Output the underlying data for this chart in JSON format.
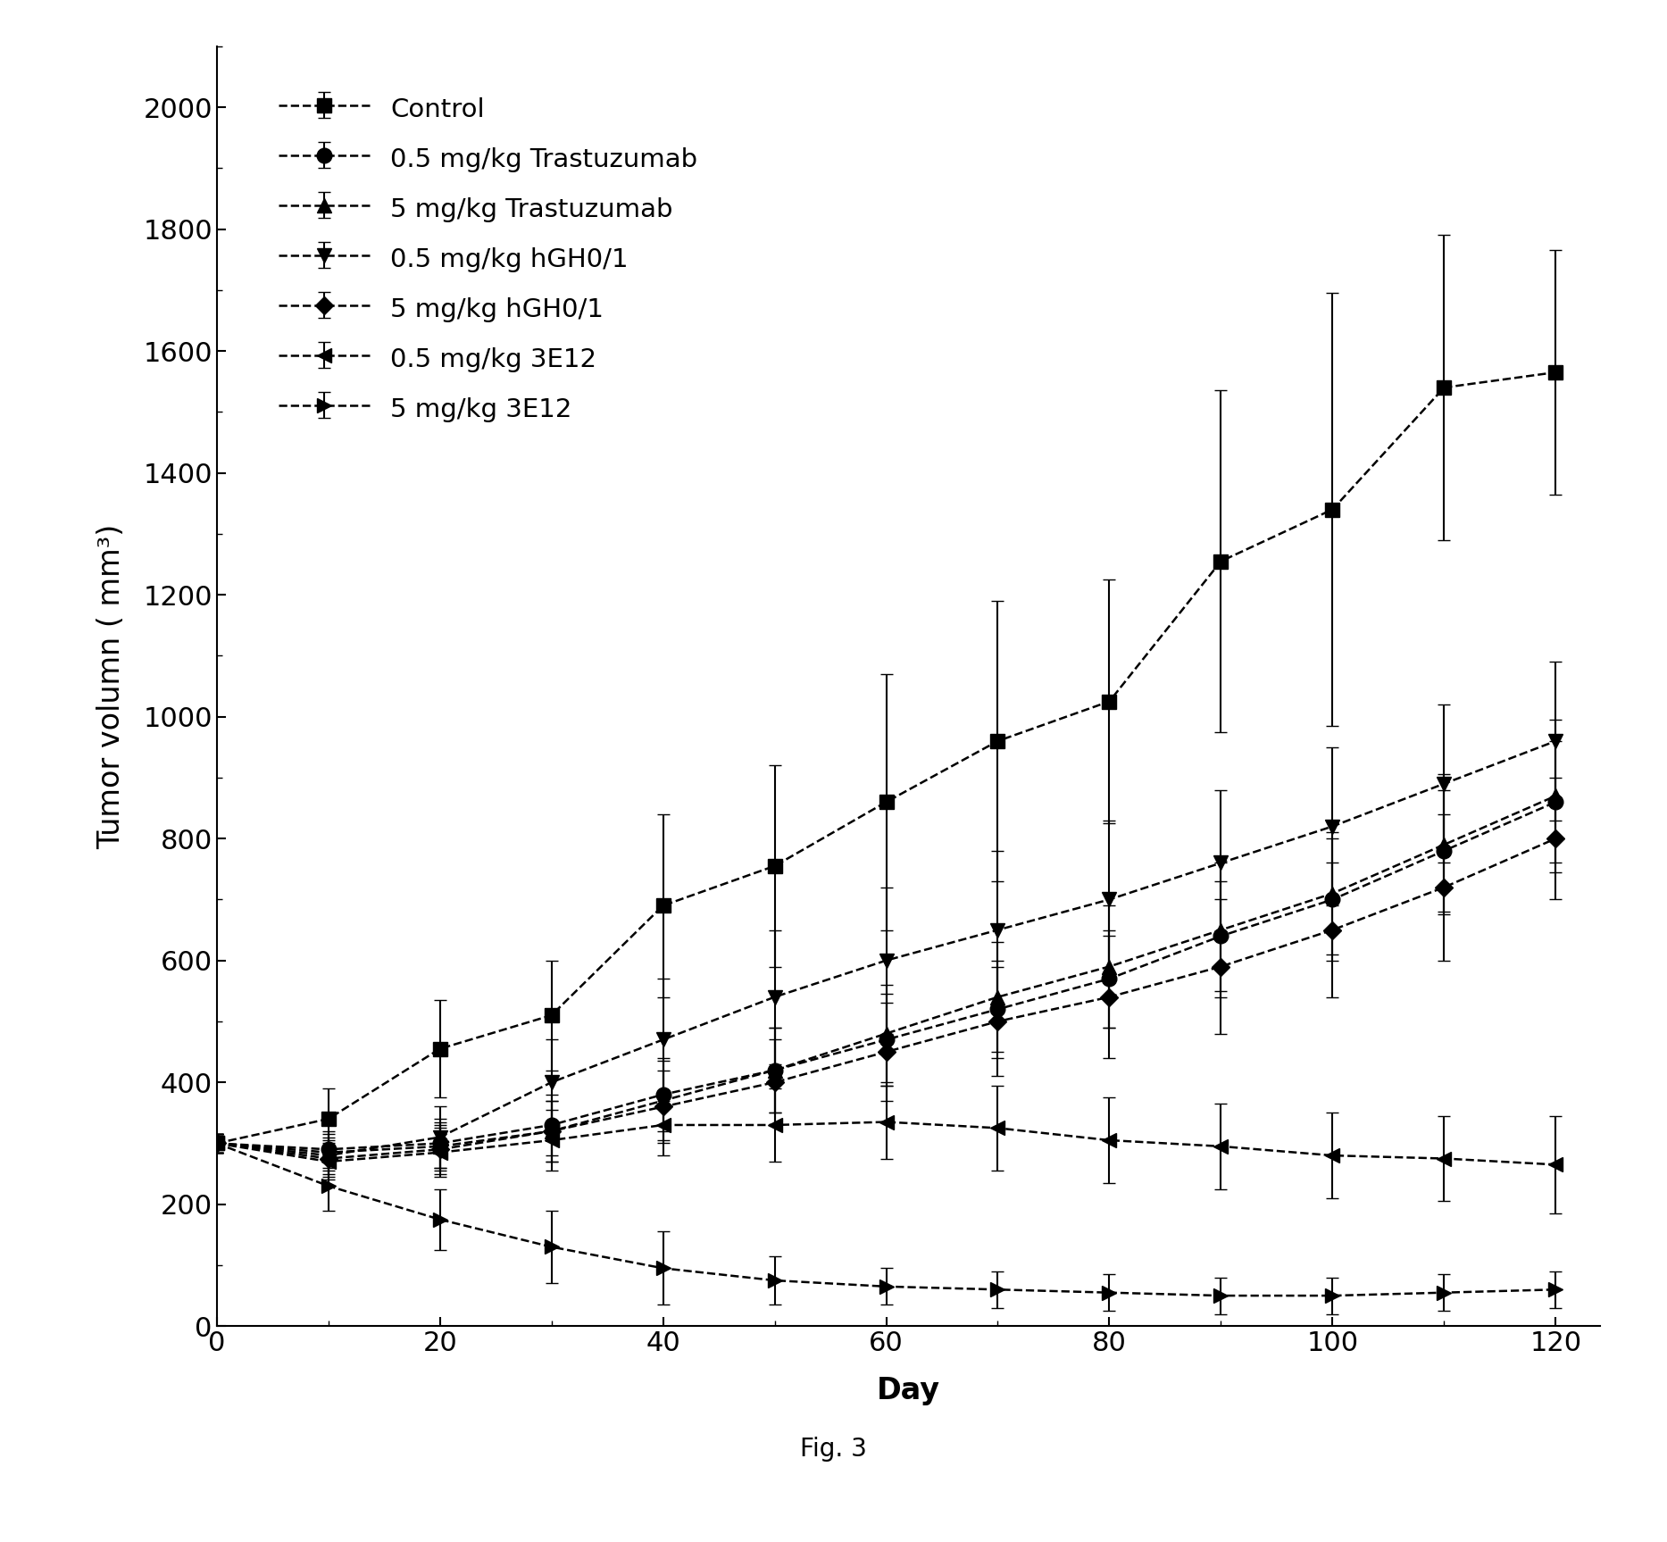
{
  "xlabel": "Day",
  "ylabel": "Tumor volumn ( mm³)",
  "fig_caption": "Fig. 3",
  "xlim": [
    0,
    124
  ],
  "ylim": [
    0,
    2100
  ],
  "xticks": [
    0,
    20,
    40,
    60,
    80,
    100,
    120
  ],
  "yticks": [
    0,
    200,
    400,
    600,
    800,
    1000,
    1200,
    1400,
    1600,
    1800,
    2000
  ],
  "days": [
    0,
    10,
    20,
    30,
    40,
    50,
    60,
    70,
    80,
    90,
    100,
    110,
    120
  ],
  "series": [
    {
      "label": "Control",
      "marker": "s",
      "markersize": 12,
      "linestyle": "--",
      "values": [
        300,
        340,
        455,
        510,
        690,
        755,
        860,
        960,
        1025,
        1255,
        1340,
        1540,
        1565
      ],
      "errors": [
        15,
        50,
        80,
        90,
        150,
        165,
        210,
        230,
        200,
        280,
        355,
        250,
        200
      ]
    },
    {
      "label": "0.5 mg/kg Trastuzumab",
      "marker": "o",
      "markersize": 12,
      "linestyle": "--",
      "values": [
        300,
        290,
        300,
        330,
        380,
        420,
        470,
        520,
        570,
        640,
        700,
        780,
        860
      ],
      "errors": [
        15,
        30,
        40,
        50,
        60,
        70,
        75,
        80,
        80,
        90,
        100,
        100,
        100
      ]
    },
    {
      "label": "5 mg/kg Trastuzumab",
      "marker": "^",
      "markersize": 12,
      "linestyle": "--",
      "values": [
        300,
        285,
        295,
        320,
        370,
        420,
        480,
        540,
        590,
        650,
        710,
        790,
        870
      ],
      "errors": [
        15,
        30,
        40,
        50,
        65,
        70,
        80,
        90,
        100,
        110,
        100,
        115,
        125
      ]
    },
    {
      "label": "0.5 mg/kg hGH0/1",
      "marker": "v",
      "markersize": 12,
      "linestyle": "--",
      "values": [
        300,
        280,
        310,
        400,
        470,
        540,
        600,
        650,
        700,
        760,
        820,
        890,
        960
      ],
      "errors": [
        15,
        30,
        50,
        70,
        100,
        110,
        120,
        130,
        130,
        120,
        130,
        130,
        130
      ]
    },
    {
      "label": "5 mg/kg hGH0/1",
      "marker": "D",
      "markersize": 10,
      "linestyle": "--",
      "values": [
        300,
        275,
        290,
        320,
        360,
        400,
        450,
        500,
        540,
        590,
        650,
        720,
        800
      ],
      "errors": [
        15,
        30,
        40,
        50,
        60,
        70,
        80,
        90,
        100,
        110,
        110,
        120,
        100
      ]
    },
    {
      "label": "0.5 mg/kg 3E12",
      "marker": "<",
      "markersize": 12,
      "linestyle": "--",
      "values": [
        300,
        270,
        285,
        305,
        330,
        330,
        335,
        325,
        305,
        295,
        280,
        275,
        265
      ],
      "errors": [
        15,
        30,
        40,
        50,
        50,
        60,
        60,
        70,
        70,
        70,
        70,
        70,
        80
      ]
    },
    {
      "label": "5 mg/kg 3E12",
      "marker": ">",
      "markersize": 12,
      "linestyle": "--",
      "values": [
        300,
        230,
        175,
        130,
        95,
        75,
        65,
        60,
        55,
        50,
        50,
        55,
        60
      ],
      "errors": [
        15,
        40,
        50,
        60,
        60,
        40,
        30,
        30,
        30,
        30,
        30,
        30,
        30
      ]
    }
  ],
  "line_color": "#000000",
  "background_color": "#ffffff",
  "fontsize_ticks": 22,
  "fontsize_labels": 24,
  "fontsize_legend": 21,
  "fontsize_caption": 20
}
